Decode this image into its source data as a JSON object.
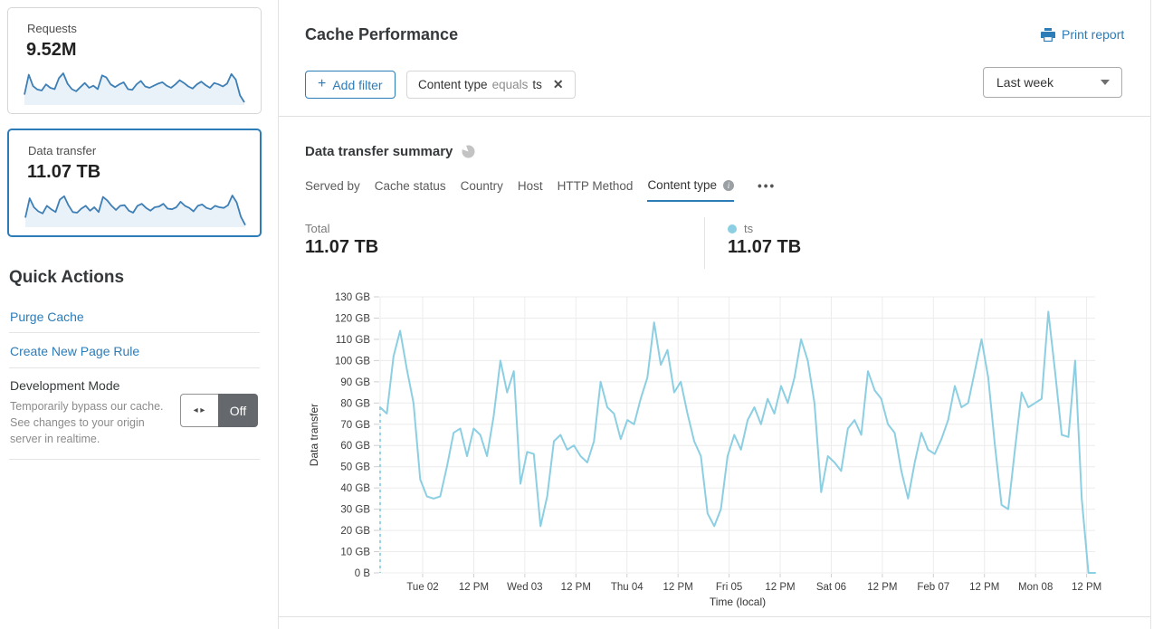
{
  "sidebar": {
    "cards": [
      {
        "label": "Requests",
        "value": "9.52M",
        "sparkline": [
          30,
          88,
          55,
          45,
          42,
          60,
          50,
          46,
          78,
          92,
          62,
          46,
          40,
          52,
          64,
          50,
          56,
          46,
          86,
          80,
          60,
          52,
          60,
          66,
          46,
          44,
          60,
          70,
          54,
          50,
          56,
          62,
          66,
          56,
          50,
          60,
          72,
          64,
          54,
          48,
          60,
          68,
          58,
          50,
          64,
          60,
          54,
          62,
          90,
          74,
          28,
          8
        ]
      },
      {
        "label": "Data transfer",
        "value": "11.07 TB",
        "selected": true,
        "sparkline": [
          28,
          84,
          58,
          46,
          40,
          62,
          52,
          44,
          80,
          90,
          64,
          44,
          42,
          54,
          62,
          48,
          58,
          44,
          88,
          78,
          62,
          50,
          62,
          64,
          48,
          42,
          62,
          68,
          56,
          48,
          58,
          60,
          68,
          54,
          52,
          58,
          74,
          62,
          56,
          46,
          62,
          66,
          56,
          52,
          62,
          58,
          56,
          64,
          92,
          72,
          30,
          6
        ]
      }
    ],
    "quick_actions": {
      "title": "Quick Actions",
      "links": [
        "Purge Cache",
        "Create New Page Rule"
      ],
      "dev_mode": {
        "title": "Development Mode",
        "description": "Temporarily bypass our cache. See changes to your origin server in realtime.",
        "toggle_label": "Off",
        "toggle_state": "off"
      }
    }
  },
  "header": {
    "title": "Cache Performance",
    "print_label": "Print report"
  },
  "filters": {
    "add_label": "Add filter",
    "chips": [
      {
        "field": "Content type",
        "operator": "equals",
        "value": "ts"
      }
    ],
    "time_range": "Last week"
  },
  "summary": {
    "title": "Data transfer summary",
    "tabs": [
      {
        "label": "Served by"
      },
      {
        "label": "Cache status"
      },
      {
        "label": "Country"
      },
      {
        "label": "Host"
      },
      {
        "label": "HTTP Method"
      },
      {
        "label": "Content type",
        "active": true,
        "has_info": true
      }
    ],
    "more_label": "•••",
    "total": {
      "label": "Total",
      "value": "11.07 TB"
    },
    "legend": {
      "name": "ts",
      "value": "11.07 TB",
      "color": "#8ccfe2"
    }
  },
  "chart_data": {
    "type": "line",
    "title": "Data transfer summary — Content type: ts",
    "xlabel": "Time (local)",
    "ylabel": "Data transfer",
    "ylim_gb": [
      0,
      130
    ],
    "y_ticks": [
      "0 B",
      "10 GB",
      "20 GB",
      "30 GB",
      "40 GB",
      "50 GB",
      "60 GB",
      "70 GB",
      "80 GB",
      "90 GB",
      "100 GB",
      "110 GB",
      "120 GB",
      "130 GB"
    ],
    "x_total_hours": 168,
    "x_ticks": [
      {
        "label": "Tue 02",
        "hour": 10
      },
      {
        "label": "12 PM",
        "hour": 22
      },
      {
        "label": "Wed 03",
        "hour": 34
      },
      {
        "label": "12 PM",
        "hour": 46
      },
      {
        "label": "Thu 04",
        "hour": 58
      },
      {
        "label": "12 PM",
        "hour": 70
      },
      {
        "label": "Fri 05",
        "hour": 82
      },
      {
        "label": "12 PM",
        "hour": 94
      },
      {
        "label": "Sat 06",
        "hour": 106
      },
      {
        "label": "12 PM",
        "hour": 118
      },
      {
        "label": "Feb 07",
        "hour": 130
      },
      {
        "label": "12 PM",
        "hour": 142
      },
      {
        "label": "Mon 08",
        "hour": 154
      },
      {
        "label": "12 PM",
        "hour": 166
      }
    ],
    "grid": true,
    "start_dashed_drop": true,
    "series": [
      {
        "name": "ts",
        "color": "#8ccfe2",
        "values_gb": [
          78,
          75,
          102,
          114,
          96,
          80,
          44,
          36,
          35,
          36,
          50,
          66,
          68,
          55,
          68,
          65,
          55,
          74,
          100,
          85,
          95,
          42,
          57,
          56,
          22,
          36,
          62,
          65,
          58,
          60,
          55,
          52,
          62,
          90,
          78,
          75,
          63,
          72,
          70,
          82,
          92,
          118,
          98,
          105,
          85,
          90,
          75,
          62,
          55,
          28,
          22,
          30,
          55,
          65,
          58,
          72,
          78,
          70,
          82,
          75,
          88,
          80,
          92,
          110,
          100,
          80,
          38,
          55,
          52,
          48,
          68,
          72,
          65,
          95,
          86,
          82,
          70,
          66,
          48,
          35,
          52,
          66,
          58,
          56,
          63,
          72,
          88,
          78,
          80,
          95,
          110,
          92,
          60,
          32,
          30,
          58,
          85,
          78,
          80,
          82,
          123,
          95,
          65,
          64,
          100,
          35,
          0,
          0
        ]
      }
    ]
  },
  "colors": {
    "accent_blue": "#2c7cb8",
    "chart_line": "#8ccfe2",
    "sparkline_line": "#3e7fb5",
    "toggle_off_bg": "#65696d"
  }
}
